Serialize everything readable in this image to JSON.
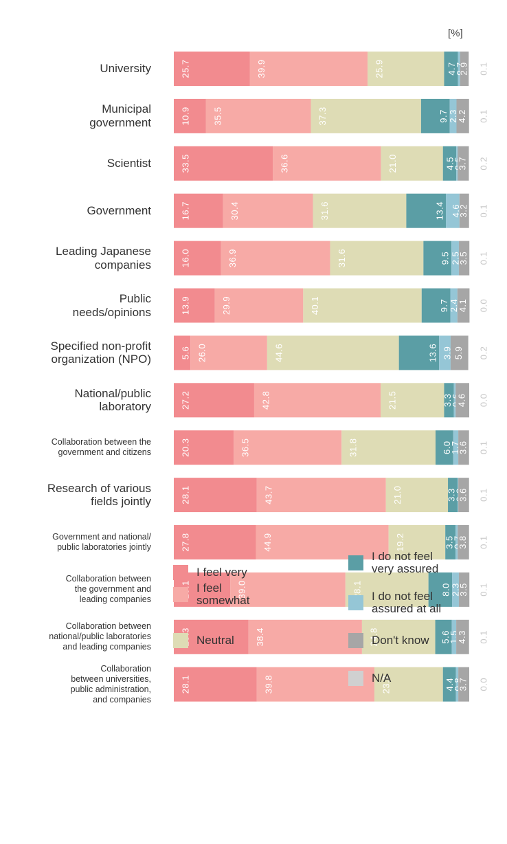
{
  "chart_data": {
    "type": "stacked_bar_horizontal",
    "unit_label": "[%]",
    "xlim": [
      0,
      100
    ],
    "categories": [
      "University",
      "Municipal\ngovernment",
      "Scientist",
      "Government",
      "Leading Japanese\ncompanies",
      "Public\nneeds/opinions",
      "Specified non-profit\norganization (NPO)",
      "National/public\nlaboratory",
      "Collaboration between the\ngovernment and citizens",
      "Research of various\nfields jointly",
      "Government and national/\npublic laboratories jointly",
      "Collaboration between\nthe government and\nleading companies",
      "Collaboration between\nnational/public laboratories\nand leading companies",
      "Collaboration\nbetween universities,\npublic administration,\nand companies"
    ],
    "series": [
      {
        "name": "I feel very",
        "color": "#f28b8f",
        "values": [
          25.7,
          10.9,
          33.5,
          16.7,
          16.0,
          13.9,
          5.6,
          27.2,
          20.3,
          28.1,
          27.8,
          19.1,
          25.3,
          28.1
        ],
        "value_labels": [
          "25.7",
          "10.9",
          "33.5",
          "16.7",
          "16.0",
          "13.9",
          "5.6",
          "27.2",
          "20.3",
          "28.1",
          "27.8",
          "19.1",
          "25.3",
          "28.1"
        ]
      },
      {
        "name": "I feel somewhat",
        "color": "#f7aaa6",
        "values": [
          39.9,
          35.5,
          36.6,
          30.4,
          36.9,
          29.9,
          26.0,
          42.8,
          36.5,
          43.7,
          44.9,
          39.0,
          38.4,
          39.8
        ],
        "value_labels": [
          "39.9",
          "35.5",
          "36.6",
          "30.4",
          "36.9",
          "29.9",
          "26.0",
          "42.8",
          "36.5",
          "43.7",
          "44.9",
          "39.0",
          "38.4",
          "39.8"
        ]
      },
      {
        "name": "Neutral",
        "color": "#dedcb5",
        "values": [
          25.9,
          37.3,
          21.0,
          31.6,
          31.6,
          40.1,
          44.6,
          21.5,
          31.8,
          21.0,
          19.2,
          28.1,
          24.8,
          23.2
        ],
        "value_labels": [
          "25.9",
          "37.3",
          "21.0",
          "31.6",
          "31.6",
          "40.1",
          "44.6",
          "21.5",
          "31.8",
          "21.0",
          "19.2",
          "28.1",
          "24.8",
          "23.2"
        ]
      },
      {
        "name": "I do not feel very assured",
        "color": "#5b9ea5",
        "values": [
          4.7,
          9.7,
          4.5,
          13.4,
          9.5,
          9.7,
          13.6,
          3.3,
          6.0,
          3.3,
          3.5,
          8.0,
          5.6,
          4.4
        ],
        "value_labels": [
          "4.7",
          "9.7",
          "4.5",
          "13.4",
          "9.5",
          "9.7",
          "13.6",
          "3.3",
          "6.0",
          "3.3",
          "3.5",
          "8.0",
          "5.6",
          "4.4"
        ]
      },
      {
        "name": "I do not feel assured at all",
        "color": "#95c6d6",
        "values": [
          0.7,
          2.3,
          0.5,
          4.6,
          2.5,
          2.4,
          3.9,
          0.6,
          1.7,
          0.2,
          0.7,
          2.3,
          1.5,
          0.8
        ],
        "value_labels": [
          "0.7",
          "2.3",
          "0.5",
          "4.6",
          "2.5",
          "2.4",
          "3.9",
          "0.6",
          "1.7",
          "0.2",
          "0.7",
          "2.3",
          "1.5",
          "0.8"
        ]
      },
      {
        "name": "Don't know",
        "color": "#a6a6a6",
        "values": [
          2.9,
          4.2,
          3.7,
          3.2,
          3.5,
          4.1,
          5.9,
          4.6,
          3.6,
          3.6,
          3.8,
          3.5,
          4.3,
          3.7
        ],
        "value_labels": [
          "2.9",
          "4.2",
          "3.7",
          "3.2",
          "3.5",
          "4.1",
          "5.9",
          "4.6",
          "3.6",
          "3.6",
          "3.8",
          "3.5",
          "4.3",
          "3.7"
        ]
      },
      {
        "name": "N/A",
        "color": "#d0d0d0",
        "values": [
          0.1,
          0.1,
          0.2,
          0.1,
          0.1,
          0.0,
          0.2,
          0.0,
          0.1,
          0.1,
          0.1,
          0.1,
          0.1,
          0.0
        ],
        "value_labels": [
          "0.1",
          "0.1",
          "0.2",
          "0.1",
          "0.1",
          "0.0",
          "0.2",
          "0.0",
          "0.1",
          "0.1",
          "0.1",
          "0.1",
          "0.1",
          "0.0"
        ]
      }
    ]
  }
}
